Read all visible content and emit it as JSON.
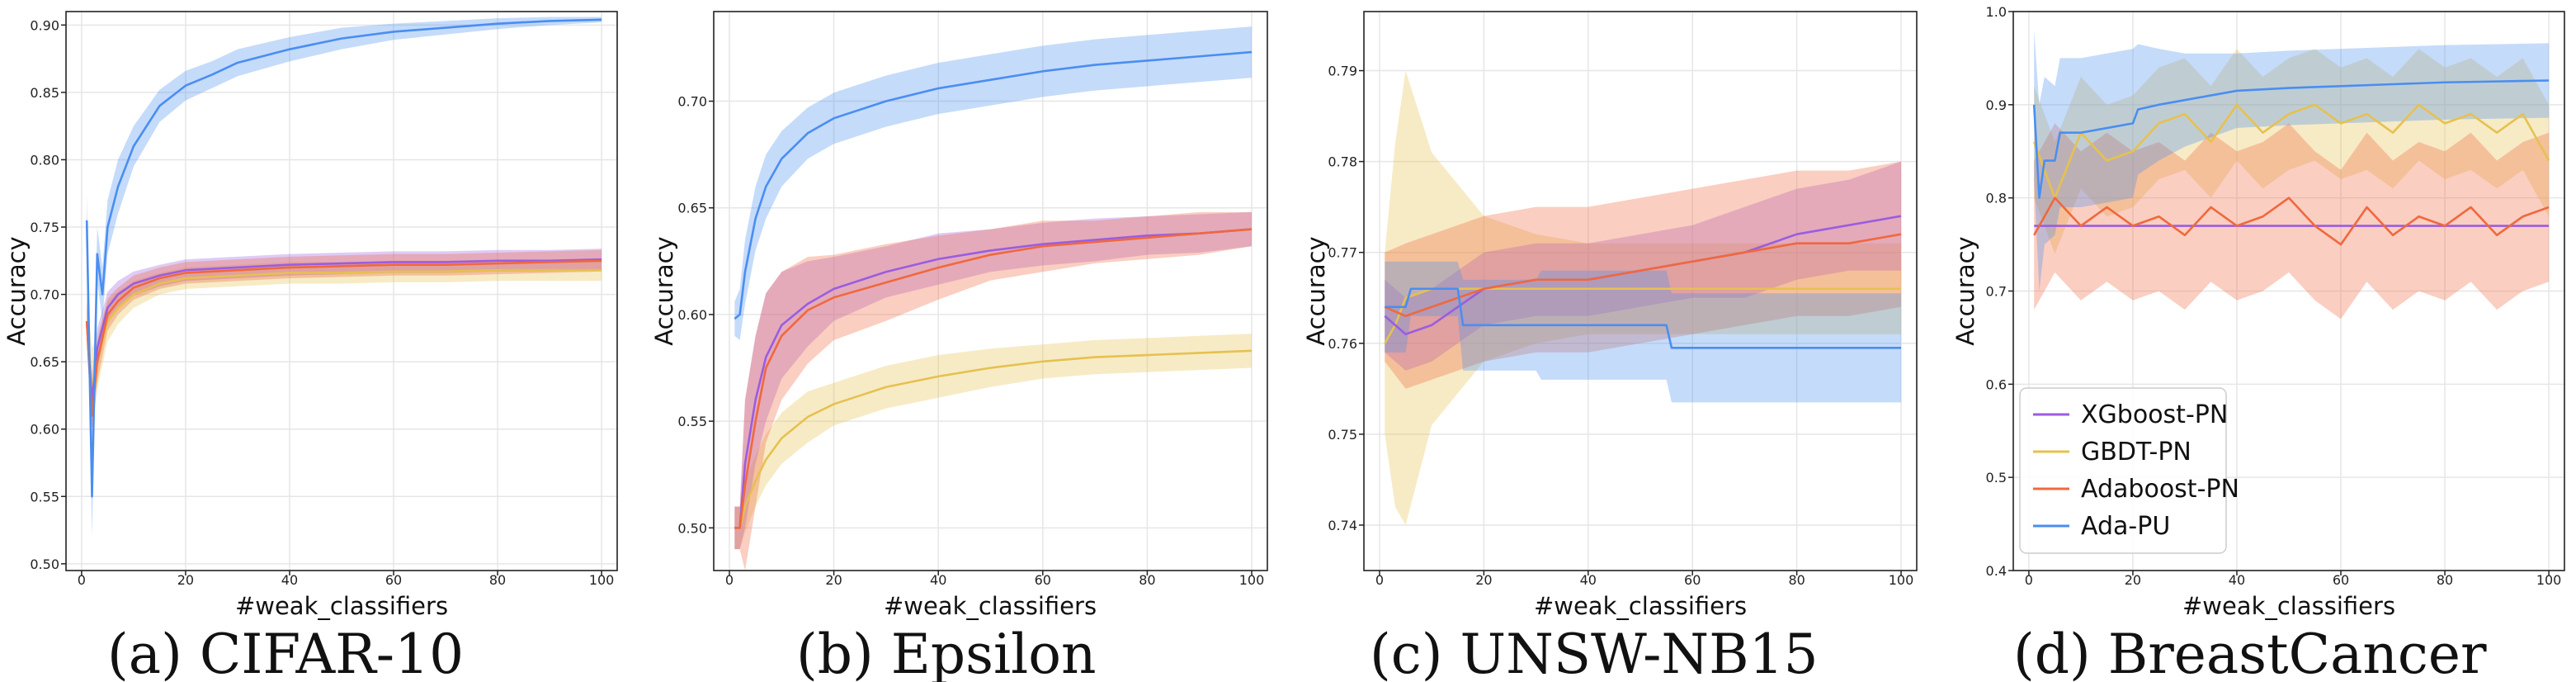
{
  "chart_data": [
    {
      "type": "line",
      "caption": "(a)  CIFAR-10",
      "xlabel": "#weak_classifiers",
      "ylabel": "Accuracy",
      "xlim": [
        -3,
        103
      ],
      "ylim": [
        0.495,
        0.91
      ],
      "xticks": [
        "0",
        "20",
        "40",
        "60",
        "80",
        "100"
      ],
      "yticks": [
        "0.50",
        "0.55",
        "0.60",
        "0.65",
        "0.70",
        "0.75",
        "0.80",
        "0.85",
        "0.90"
      ],
      "grid": true,
      "legend": "none",
      "series": [
        {
          "color": "#e6c14f",
          "x": [
            1,
            2,
            3,
            5,
            7,
            10,
            15,
            20,
            30,
            40,
            50,
            60,
            70,
            80,
            90,
            100
          ],
          "y": [
            0.68,
            0.63,
            0.65,
            0.68,
            0.69,
            0.7,
            0.708,
            0.712,
            0.714,
            0.716,
            0.716,
            0.717,
            0.717,
            0.718,
            0.718,
            0.718
          ],
          "band": [
            0.02,
            0.03,
            0.02,
            0.015,
            0.012,
            0.01,
            0.008,
            0.008,
            0.008,
            0.008,
            0.008,
            0.008,
            0.008,
            0.008,
            0.008,
            0.008
          ]
        },
        {
          "color": "#9a5de0",
          "x": [
            1,
            2,
            3,
            5,
            7,
            10,
            15,
            20,
            30,
            40,
            50,
            60,
            70,
            80,
            90,
            100
          ],
          "y": [
            0.68,
            0.62,
            0.66,
            0.69,
            0.7,
            0.708,
            0.714,
            0.718,
            0.72,
            0.722,
            0.723,
            0.724,
            0.724,
            0.725,
            0.725,
            0.726
          ],
          "band": [
            0.015,
            0.02,
            0.015,
            0.012,
            0.01,
            0.009,
            0.008,
            0.008,
            0.008,
            0.008,
            0.008,
            0.008,
            0.008,
            0.008,
            0.008,
            0.008
          ]
        },
        {
          "color": "#f0683e",
          "x": [
            1,
            2,
            3,
            5,
            7,
            10,
            15,
            20,
            30,
            40,
            50,
            60,
            70,
            80,
            90,
            100
          ],
          "y": [
            0.68,
            0.61,
            0.65,
            0.685,
            0.695,
            0.705,
            0.712,
            0.716,
            0.718,
            0.72,
            0.721,
            0.722,
            0.722,
            0.723,
            0.724,
            0.725
          ],
          "band": [
            0.015,
            0.02,
            0.015,
            0.012,
            0.01,
            0.009,
            0.008,
            0.008,
            0.008,
            0.008,
            0.008,
            0.008,
            0.008,
            0.008,
            0.008,
            0.008
          ]
        },
        {
          "color": "#4a8ef0",
          "x": [
            1,
            2,
            3,
            4,
            5,
            7,
            10,
            15,
            20,
            25,
            30,
            40,
            50,
            60,
            70,
            80,
            90,
            100
          ],
          "y": [
            0.755,
            0.55,
            0.73,
            0.7,
            0.75,
            0.78,
            0.81,
            0.84,
            0.855,
            0.863,
            0.872,
            0.882,
            0.89,
            0.895,
            0.898,
            0.901,
            0.903,
            0.904
          ],
          "band": [
            0.02,
            0.03,
            0.02,
            0.02,
            0.02,
            0.02,
            0.015,
            0.012,
            0.011,
            0.01,
            0.01,
            0.009,
            0.008,
            0.006,
            0.005,
            0.004,
            0.003,
            0.002
          ]
        }
      ]
    },
    {
      "type": "line",
      "caption": "(b)  Epsilon",
      "xlabel": "#weak_classifiers",
      "ylabel": "Accuracy",
      "xlim": [
        -3,
        103
      ],
      "ylim": [
        0.48,
        0.742
      ],
      "xticks": [
        "0",
        "20",
        "40",
        "60",
        "80",
        "100"
      ],
      "yticks": [
        "0.50",
        "0.55",
        "0.60",
        "0.65",
        "0.70"
      ],
      "grid": true,
      "legend": "none",
      "series": [
        {
          "color": "#e6c14f",
          "x": [
            1,
            2,
            3,
            5,
            7,
            10,
            15,
            20,
            30,
            40,
            50,
            60,
            70,
            80,
            90,
            100
          ],
          "y": [
            0.5,
            0.5,
            0.51,
            0.522,
            0.532,
            0.542,
            0.552,
            0.558,
            0.566,
            0.571,
            0.575,
            0.578,
            0.58,
            0.581,
            0.582,
            0.583
          ],
          "band": [
            0.01,
            0.01,
            0.012,
            0.012,
            0.012,
            0.012,
            0.012,
            0.01,
            0.01,
            0.01,
            0.009,
            0.008,
            0.008,
            0.008,
            0.008,
            0.008
          ]
        },
        {
          "color": "#9a5de0",
          "x": [
            1,
            2,
            3,
            5,
            7,
            10,
            15,
            20,
            30,
            40,
            50,
            60,
            70,
            80,
            90,
            100
          ],
          "y": [
            0.5,
            0.5,
            0.53,
            0.56,
            0.58,
            0.595,
            0.605,
            0.612,
            0.62,
            0.626,
            0.63,
            0.633,
            0.635,
            0.637,
            0.638,
            0.64
          ],
          "band": [
            0.01,
            0.01,
            0.03,
            0.03,
            0.03,
            0.025,
            0.02,
            0.015,
            0.012,
            0.012,
            0.01,
            0.01,
            0.01,
            0.009,
            0.009,
            0.008
          ]
        },
        {
          "color": "#f0683e",
          "x": [
            1,
            2,
            3,
            5,
            7,
            10,
            15,
            20,
            30,
            40,
            50,
            60,
            70,
            80,
            90,
            100
          ],
          "y": [
            0.5,
            0.5,
            0.52,
            0.55,
            0.575,
            0.59,
            0.602,
            0.608,
            0.615,
            0.622,
            0.628,
            0.632,
            0.634,
            0.636,
            0.638,
            0.64
          ],
          "band": [
            0.01,
            0.01,
            0.04,
            0.04,
            0.035,
            0.03,
            0.025,
            0.02,
            0.018,
            0.015,
            0.012,
            0.012,
            0.01,
            0.01,
            0.01,
            0.008
          ]
        },
        {
          "color": "#4a8ef0",
          "x": [
            1,
            2,
            3,
            5,
            7,
            10,
            15,
            20,
            30,
            40,
            50,
            60,
            70,
            80,
            90,
            100
          ],
          "y": [
            0.598,
            0.6,
            0.62,
            0.645,
            0.66,
            0.673,
            0.685,
            0.692,
            0.7,
            0.706,
            0.71,
            0.714,
            0.717,
            0.719,
            0.721,
            0.723
          ],
          "band": [
            0.008,
            0.012,
            0.015,
            0.015,
            0.015,
            0.013,
            0.012,
            0.012,
            0.012,
            0.012,
            0.012,
            0.012,
            0.012,
            0.012,
            0.012,
            0.012
          ]
        }
      ]
    },
    {
      "type": "line",
      "caption": "(c)  UNSW-NB15",
      "xlabel": "#weak_classifiers",
      "ylabel": "Accuracy",
      "xlim": [
        -3,
        103
      ],
      "ylim": [
        0.735,
        0.7965
      ],
      "xticks": [
        "0",
        "20",
        "40",
        "60",
        "80",
        "100"
      ],
      "yticks": [
        "0.74",
        "0.75",
        "0.76",
        "0.77",
        "0.78",
        "0.79"
      ],
      "grid": true,
      "legend": "none",
      "series": [
        {
          "color": "#e6c14f",
          "x": [
            1,
            3,
            5,
            10,
            20,
            30,
            40,
            50,
            60,
            70,
            80,
            90,
            100
          ],
          "y": [
            0.76,
            0.762,
            0.765,
            0.766,
            0.766,
            0.766,
            0.766,
            0.766,
            0.766,
            0.766,
            0.766,
            0.766,
            0.766
          ],
          "band": [
            0.01,
            0.02,
            0.025,
            0.015,
            0.008,
            0.006,
            0.005,
            0.005,
            0.005,
            0.005,
            0.005,
            0.005,
            0.005
          ]
        },
        {
          "color": "#9a5de0",
          "x": [
            1,
            5,
            10,
            15,
            20,
            30,
            40,
            50,
            60,
            70,
            80,
            90,
            100
          ],
          "y": [
            0.763,
            0.761,
            0.762,
            0.764,
            0.766,
            0.767,
            0.767,
            0.768,
            0.769,
            0.77,
            0.772,
            0.773,
            0.774
          ],
          "band": [
            0.004,
            0.004,
            0.004,
            0.004,
            0.004,
            0.004,
            0.004,
            0.004,
            0.004,
            0.005,
            0.005,
            0.005,
            0.006
          ]
        },
        {
          "color": "#f0683e",
          "x": [
            1,
            5,
            10,
            15,
            20,
            30,
            40,
            50,
            60,
            70,
            80,
            90,
            100
          ],
          "y": [
            0.764,
            0.763,
            0.764,
            0.765,
            0.766,
            0.767,
            0.767,
            0.768,
            0.769,
            0.77,
            0.771,
            0.771,
            0.772
          ],
          "band": [
            0.006,
            0.008,
            0.008,
            0.008,
            0.008,
            0.008,
            0.008,
            0.008,
            0.008,
            0.008,
            0.008,
            0.008,
            0.008
          ]
        },
        {
          "color": "#4a8ef0",
          "x": [
            1,
            5,
            6,
            15,
            16,
            30,
            31,
            55,
            56,
            100
          ],
          "y": [
            0.764,
            0.764,
            0.766,
            0.766,
            0.762,
            0.762,
            0.762,
            0.762,
            0.7595,
            0.7595
          ],
          "band": [
            0.005,
            0.005,
            0.003,
            0.003,
            0.005,
            0.005,
            0.006,
            0.006,
            0.006,
            0.006
          ]
        }
      ]
    },
    {
      "type": "line",
      "caption": "(d)  BreastCancer",
      "xlabel": "#weak_classifiers",
      "ylabel": "Accuracy",
      "xlim": [
        -3,
        103
      ],
      "ylim": [
        0.4,
        1.0
      ],
      "xticks": [
        "0",
        "20",
        "40",
        "60",
        "80",
        "100"
      ],
      "yticks": [
        "0.4",
        "0.5",
        "0.6",
        "0.7",
        "0.8",
        "0.9",
        "1.0"
      ],
      "grid": true,
      "legend": "bottom-left",
      "series": [
        {
          "name": "XGboost-PN",
          "color": "#9a5de0",
          "x": [
            1,
            2,
            100
          ],
          "y": [
            0.77,
            0.77,
            0.77
          ],
          "band": [
            0.0,
            0.0,
            0.0
          ]
        },
        {
          "name": "GBDT-PN",
          "color": "#e6c14f",
          "x": [
            1,
            5,
            10,
            15,
            20,
            25,
            30,
            35,
            40,
            45,
            50,
            55,
            60,
            65,
            70,
            75,
            80,
            85,
            90,
            95,
            100
          ],
          "y": [
            0.86,
            0.8,
            0.87,
            0.84,
            0.85,
            0.88,
            0.89,
            0.86,
            0.9,
            0.87,
            0.89,
            0.9,
            0.88,
            0.89,
            0.87,
            0.9,
            0.88,
            0.89,
            0.87,
            0.89,
            0.84
          ],
          "band": [
            0.06,
            0.06,
            0.06,
            0.06,
            0.06,
            0.06,
            0.06,
            0.06,
            0.06,
            0.06,
            0.06,
            0.06,
            0.06,
            0.06,
            0.06,
            0.06,
            0.06,
            0.06,
            0.06,
            0.06,
            0.06
          ]
        },
        {
          "name": "Adaboost-PN",
          "color": "#f0683e",
          "x": [
            1,
            5,
            10,
            15,
            20,
            25,
            30,
            35,
            40,
            45,
            50,
            55,
            60,
            65,
            70,
            75,
            80,
            85,
            90,
            95,
            100
          ],
          "y": [
            0.76,
            0.8,
            0.77,
            0.79,
            0.77,
            0.78,
            0.76,
            0.79,
            0.77,
            0.78,
            0.8,
            0.77,
            0.75,
            0.79,
            0.76,
            0.78,
            0.77,
            0.79,
            0.76,
            0.78,
            0.79
          ],
          "band": [
            0.08,
            0.08,
            0.08,
            0.08,
            0.08,
            0.08,
            0.08,
            0.08,
            0.08,
            0.08,
            0.08,
            0.08,
            0.08,
            0.08,
            0.08,
            0.08,
            0.08,
            0.08,
            0.08,
            0.08,
            0.08
          ]
        },
        {
          "name": "Ada-PU",
          "color": "#4a8ef0",
          "x": [
            1,
            2,
            3,
            5,
            6,
            10,
            15,
            20,
            21,
            25,
            30,
            35,
            40,
            50,
            60,
            70,
            80,
            90,
            100
          ],
          "y": [
            0.9,
            0.8,
            0.84,
            0.84,
            0.87,
            0.87,
            0.875,
            0.88,
            0.895,
            0.9,
            0.905,
            0.91,
            0.915,
            0.918,
            0.92,
            0.922,
            0.924,
            0.925,
            0.926
          ],
          "band": [
            0.08,
            0.1,
            0.09,
            0.08,
            0.08,
            0.08,
            0.08,
            0.08,
            0.07,
            0.06,
            0.05,
            0.045,
            0.04,
            0.04,
            0.04,
            0.04,
            0.04,
            0.04,
            0.04
          ]
        }
      ]
    }
  ]
}
